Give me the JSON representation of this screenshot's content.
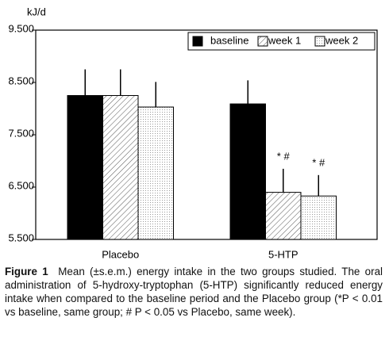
{
  "chart_data": {
    "type": "bar",
    "y_unit": "kJ/d",
    "categories": [
      "Placebo",
      "5-HTP"
    ],
    "series": [
      {
        "name": "baseline",
        "color": "#000000",
        "pattern": "solid",
        "values": [
          8250,
          8090
        ],
        "errors": [
          500,
          450
        ]
      },
      {
        "name": "week 1",
        "color": "#000000",
        "pattern": "hatch",
        "values": [
          8250,
          6400
        ],
        "errors": [
          500,
          450
        ]
      },
      {
        "name": "week 2",
        "color": "#000000",
        "pattern": "dots",
        "values": [
          8030,
          6330
        ],
        "errors": [
          480,
          400
        ]
      }
    ],
    "annotations": [
      "* #",
      "* #"
    ],
    "ylim": [
      5500,
      9500
    ],
    "yticks": [
      {
        "value": 5500,
        "label": "5.500"
      },
      {
        "value": 6500,
        "label": "6.500"
      },
      {
        "value": 7500,
        "label": "7.500"
      },
      {
        "value": 8500,
        "label": "8.500"
      },
      {
        "value": 9500,
        "label": "9.500"
      }
    ],
    "legend": "top-right"
  },
  "caption": {
    "label": "Figure 1",
    "text": "Mean (±s.e.m.) energy intake in the two groups studied. The oral administration of 5-hydroxy-tryptophan (5-HTP) significantly reduced energy intake when compared to the baseline period and the Placebo group (*P < 0.01 vs baseline, same group; # P < 0.05 vs Placebo, same week)."
  }
}
